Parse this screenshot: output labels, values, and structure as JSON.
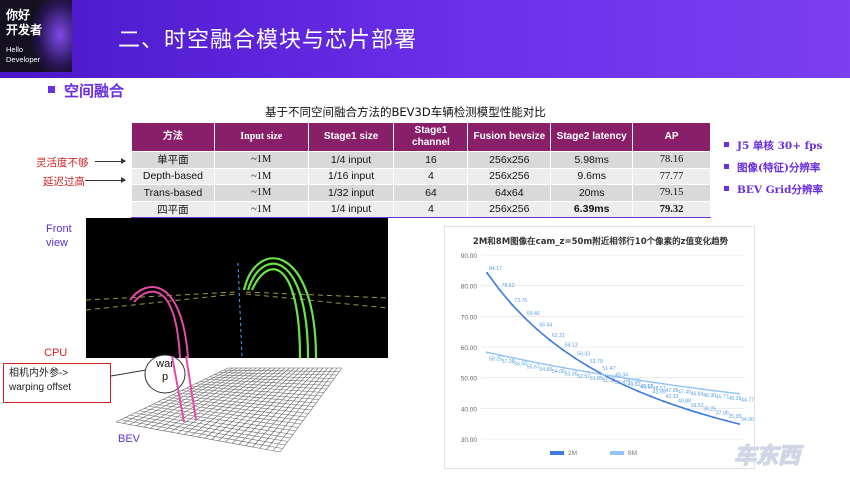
{
  "logo": {
    "line1": "你好",
    "line2": "开发者",
    "sub1": "Hello",
    "sub2": "Developer"
  },
  "slide": {
    "title": "二、时空融合模块与芯片部署"
  },
  "section": {
    "title": "空间融合"
  },
  "table": {
    "caption": "基于不同空间融合方法的BEV3D车辆检测模型性能对比",
    "headers": [
      "方法",
      "Input size",
      "Stage1 size",
      "Stage1 channel",
      "Fusion bevsize",
      "Stage2 latency",
      "AP"
    ],
    "rows": [
      [
        "单平面",
        "~1M",
        "1/4 input",
        "16",
        "256x256",
        "5.98ms",
        "78.16"
      ],
      [
        "Depth-based",
        "~1M",
        "1/16 input",
        "4",
        "256x256",
        "9.6ms",
        "77.77"
      ],
      [
        "Trans-based",
        "~1M",
        "1/32 input",
        "64",
        "64x64",
        "20ms",
        "79.15"
      ],
      [
        "四平面",
        "~1M",
        "1/4 input",
        "4",
        "256x256",
        "6.39ms",
        "79.32"
      ]
    ]
  },
  "side_labels": {
    "flexibility": "灵活度不够",
    "latency": "延迟过高"
  },
  "notes": [
    "J5 单核 30+ fps",
    "图像(特征)分辨率",
    "BEV Grid分辨率"
  ],
  "diagram": {
    "front_view": "Front view",
    "cpu": "CPU",
    "calib_line1": "相机内外参->",
    "calib_line2": "warping offset",
    "warp_line1": "war",
    "warp_line2": "p",
    "bev": "BEV"
  },
  "colors": {
    "header": "#5a22d8",
    "accent": "#6a2fe0",
    "table_header": "#8a1f69",
    "red": "#d22222",
    "series_2m": "#3e7be0",
    "series_8m": "#8fc3f5"
  },
  "chart_data": {
    "type": "line",
    "title": "2M和8M图像在cam_z=50m附近相邻行10个像素的z值变化趋势",
    "ylim": [
      30,
      90
    ],
    "yticks": [
      "90.00",
      "80.00",
      "70.00",
      "60.00",
      "50.00",
      "40.00",
      "30.00"
    ],
    "grid": true,
    "legend": "bottom",
    "series": [
      {
        "name": "2M",
        "values": [
          84.17,
          78.62,
          73.76,
          69.46,
          65.64,
          62.21,
          59.13,
          56.33,
          53.79,
          51.47,
          49.34,
          47.38,
          45.57,
          43.89,
          42.33,
          40.88,
          39.52,
          38.25,
          37.06,
          35.95,
          34.9
        ]
      },
      {
        "name": "8M",
        "values": [
          58.25,
          57.38,
          56.5,
          55.67,
          54.85,
          54.06,
          53.3,
          52.57,
          51.85,
          51.12,
          50.47,
          49.82,
          49.18,
          48.57,
          47.98,
          47.4,
          46.84,
          46.3,
          45.77,
          45.26,
          44.77
        ]
      }
    ],
    "labels_2m": [
      "84.17",
      "78.62",
      "73.76",
      "69.46",
      "65.64",
      "62.21",
      "59.13",
      "56.33",
      "53.79",
      "51.47",
      "49.34",
      "47.38",
      "45.57",
      "43.89",
      "42.33",
      "40.88",
      "39.52",
      "38.25",
      "37.06",
      "35.95",
      "34.90"
    ],
    "labels_8m": [
      "58.25",
      "57.38",
      "56.50",
      "55.67",
      "54.85",
      "54.06",
      "53.30",
      "52.57",
      "51.85",
      "51.12",
      "50.47",
      "49.82",
      "49.18",
      "48.57",
      "47.98",
      "47.40",
      "46.84",
      "46.30",
      "45.77",
      "45.26",
      "44.77"
    ]
  },
  "watermark": "车东西"
}
